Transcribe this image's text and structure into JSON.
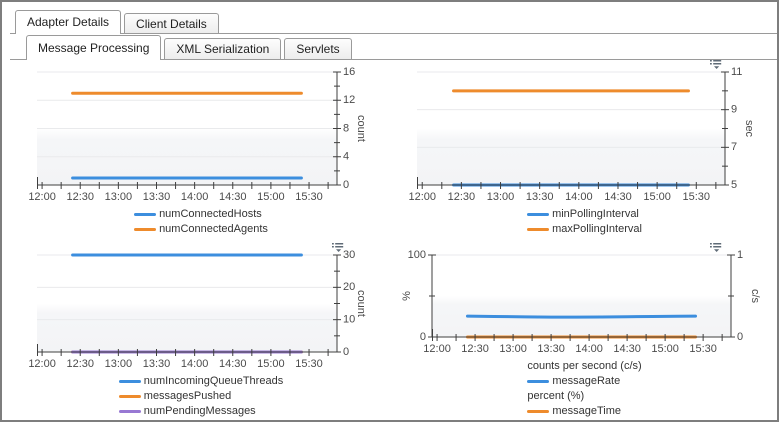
{
  "tabs": {
    "primary": {
      "items": [
        {
          "label": "Adapter Details",
          "active": true
        },
        {
          "label": "Client Details",
          "active": false
        }
      ]
    },
    "secondary": {
      "items": [
        {
          "label": "Message Processing",
          "active": true
        },
        {
          "label": "XML Serialization",
          "active": false
        },
        {
          "label": "Servlets",
          "active": false
        }
      ]
    }
  },
  "colors": {
    "blue": "#3c8ede",
    "orange": "#ee8b2c",
    "purple": "#9878d3",
    "axis": "#3f3f3f",
    "grid": "#e9eaec",
    "band": "#f3f4f6",
    "tick_text": "#4b4b4b",
    "legend_text": "#333333",
    "tab_border": "#9a9a9a",
    "window_border": "#7e7e7e",
    "icon_gray": "#5f6b77"
  },
  "icons": {
    "chart_menu": "list-dropdown-icon"
  },
  "chart_data": [
    {
      "name": "connected-hosts-agents",
      "type": "line",
      "x": {
        "min": "11:56",
        "max": "15:52",
        "tick_minutes": 15,
        "label_minutes": 30,
        "labels": [
          "12:00",
          "12:30",
          "13:00",
          "13:30",
          "14:00",
          "14:30",
          "15:00",
          "15:30"
        ]
      },
      "y_right": {
        "label": "count",
        "min": 0,
        "max": 16,
        "major_ticks": [
          0,
          4,
          8,
          12,
          16
        ],
        "minor_ticks": [
          2,
          6,
          10,
          14
        ]
      },
      "grid": true,
      "series": [
        {
          "name": "numConnectedHosts",
          "color": "#3c8ede",
          "axis": "right",
          "points": [
            [
              "12:24",
              1
            ],
            [
              "15:24",
              1
            ]
          ]
        },
        {
          "name": "numConnectedAgents",
          "color": "#ee8b2c",
          "axis": "right",
          "points": [
            [
              "12:24",
              13
            ],
            [
              "15:24",
              13
            ]
          ]
        }
      ],
      "legend": [
        {
          "swatch_color": "#3c8ede",
          "label": "numConnectedHosts"
        },
        {
          "swatch_color": "#ee8b2c",
          "label": "numConnectedAgents"
        }
      ],
      "menu_icon": false
    },
    {
      "name": "polling-interval",
      "type": "line",
      "x": {
        "min": "11:56",
        "max": "15:52",
        "tick_minutes": 15,
        "label_minutes": 30,
        "labels": [
          "12:00",
          "12:30",
          "13:00",
          "13:30",
          "14:00",
          "14:30",
          "15:00",
          "15:30"
        ]
      },
      "y_right": {
        "label": "sec",
        "min": 5,
        "max": 11,
        "major_ticks": [
          5,
          7,
          9,
          11
        ],
        "minor_ticks": [
          6,
          8,
          10
        ]
      },
      "grid": true,
      "series": [
        {
          "name": "minPollingInterval",
          "color": "#3c8ede",
          "axis": "right",
          "points": [
            [
              "12:24",
              5
            ],
            [
              "15:24",
              5
            ]
          ]
        },
        {
          "name": "maxPollingInterval",
          "color": "#ee8b2c",
          "axis": "right",
          "points": [
            [
              "12:24",
              10
            ],
            [
              "15:24",
              10
            ]
          ]
        }
      ],
      "legend": [
        {
          "swatch_color": "#3c8ede",
          "label": "minPollingInterval"
        },
        {
          "swatch_color": "#ee8b2c",
          "label": "maxPollingInterval"
        }
      ],
      "menu_icon": true
    },
    {
      "name": "queue-threads-messages",
      "type": "line",
      "x": {
        "min": "11:56",
        "max": "15:52",
        "tick_minutes": 15,
        "label_minutes": 30,
        "labels": [
          "12:00",
          "12:30",
          "13:00",
          "13:30",
          "14:00",
          "14:30",
          "15:00",
          "15:30"
        ]
      },
      "y_right": {
        "label": "count",
        "min": 0,
        "max": 30,
        "major_ticks": [
          0,
          10,
          20,
          30
        ],
        "minor_ticks": [
          5,
          15,
          25
        ]
      },
      "grid": true,
      "series": [
        {
          "name": "numIncomingQueueThreads",
          "color": "#3c8ede",
          "axis": "right",
          "points": [
            [
              "12:24",
              30
            ],
            [
              "15:24",
              30
            ]
          ]
        },
        {
          "name": "messagesPushed",
          "color": "#ee8b2c",
          "axis": "right",
          "points": [
            [
              "12:24",
              0
            ],
            [
              "15:24",
              0
            ]
          ]
        },
        {
          "name": "numPendingMessages",
          "color": "#9878d3",
          "axis": "right",
          "points": [
            [
              "12:24",
              0
            ],
            [
              "15:24",
              0
            ]
          ]
        }
      ],
      "legend": [
        {
          "swatch_color": "#3c8ede",
          "label": "numIncomingQueueThreads"
        },
        {
          "swatch_color": "#ee8b2c",
          "label": "messagesPushed"
        },
        {
          "swatch_color": "#9878d3",
          "label": "numPendingMessages"
        }
      ],
      "menu_icon": true
    },
    {
      "name": "message-rate-time",
      "type": "line",
      "x": {
        "min": "11:56",
        "max": "15:52",
        "tick_minutes": 15,
        "label_minutes": 30,
        "labels": [
          "12:00",
          "12:30",
          "13:00",
          "13:30",
          "14:00",
          "14:30",
          "15:00",
          "15:30"
        ]
      },
      "y_left": {
        "label": "%",
        "min": 0,
        "max": 100,
        "major_ticks": [
          0,
          100
        ],
        "minor_ticks": [
          50
        ]
      },
      "y_right": {
        "label": "c/s",
        "min": 0,
        "max": 1,
        "major_ticks": [
          0,
          1
        ],
        "minor_ticks": [
          0.5
        ]
      },
      "grid": true,
      "series": [
        {
          "name": "messageRate",
          "color": "#3c8ede",
          "axis": "right",
          "points": [
            [
              "12:24",
              0.255
            ],
            [
              "12:45",
              0.25
            ],
            [
              "13:10",
              0.246
            ],
            [
              "13:30",
              0.243
            ],
            [
              "13:50",
              0.242
            ],
            [
              "14:10",
              0.244
            ],
            [
              "14:30",
              0.247
            ],
            [
              "14:50",
              0.25
            ],
            [
              "15:10",
              0.253
            ],
            [
              "15:24",
              0.255
            ]
          ]
        },
        {
          "name": "messageTime",
          "color": "#ee8b2c",
          "axis": "left",
          "points": [
            [
              "12:24",
              0
            ],
            [
              "15:24",
              0
            ]
          ]
        }
      ],
      "legend": [
        {
          "header": "counts per second (c/s)"
        },
        {
          "swatch_color": "#3c8ede",
          "label": "messageRate"
        },
        {
          "header": "percent (%)"
        },
        {
          "swatch_color": "#ee8b2c",
          "label": "messageTime"
        }
      ],
      "menu_icon": true
    }
  ]
}
